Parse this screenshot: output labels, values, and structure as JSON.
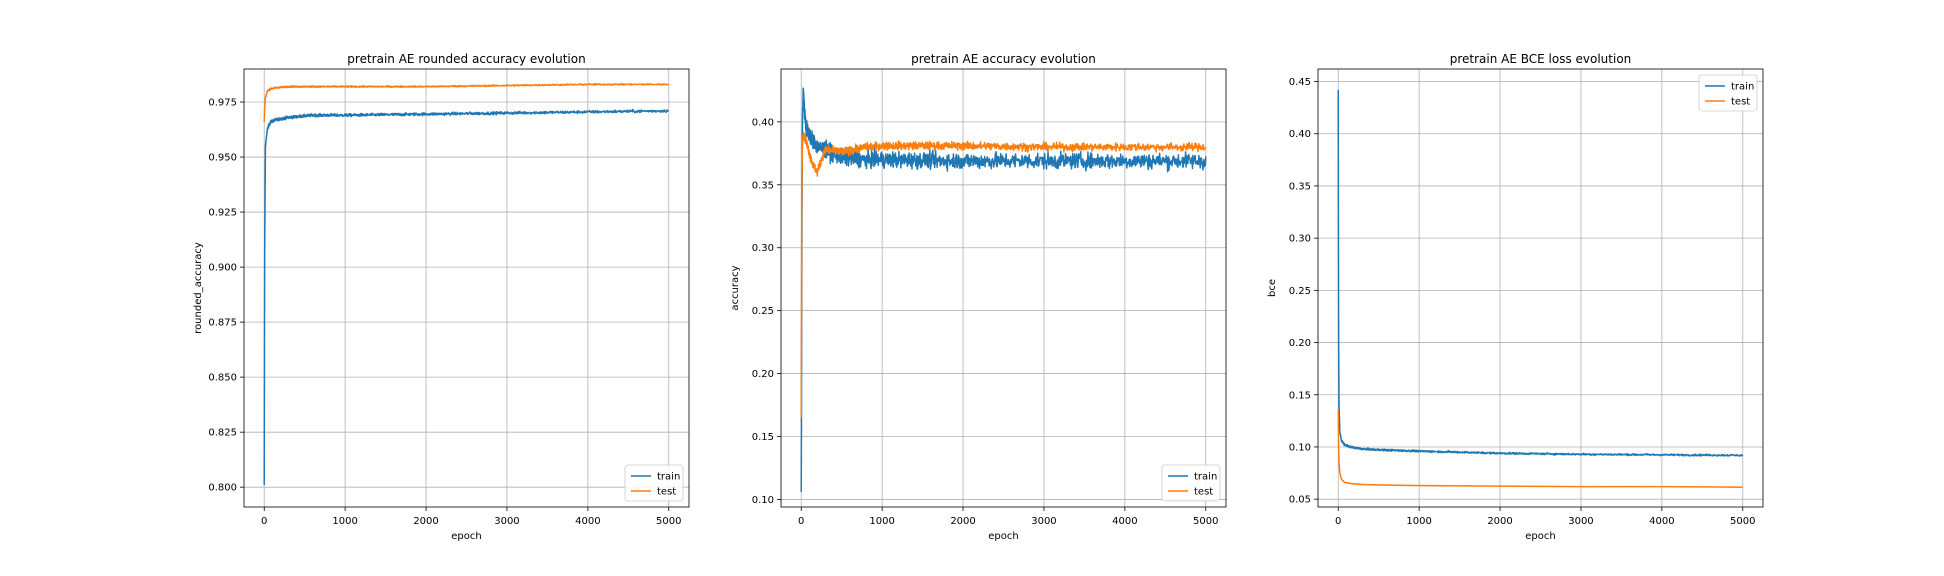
{
  "colors": {
    "train": "#1f77b4",
    "test": "#ff7f0e",
    "grid": "#b0b0b0"
  },
  "chart_data": [
    {
      "type": "line",
      "title": "pretrain AE rounded accuracy evolution",
      "xlabel": "epoch",
      "ylabel": "rounded_accuracy",
      "xlim": [
        -250,
        5250
      ],
      "ylim": [
        0.791,
        0.99
      ],
      "xticks": [
        0,
        1000,
        2000,
        3000,
        4000,
        5000
      ],
      "yticks": [
        0.8,
        0.825,
        0.85,
        0.875,
        0.9,
        0.925,
        0.95,
        0.975
      ],
      "ytick_labels": [
        "0.800",
        "0.825",
        "0.850",
        "0.875",
        "0.900",
        "0.925",
        "0.950",
        "0.975"
      ],
      "grid": true,
      "legend": "lower right",
      "series": [
        {
          "name": "train",
          "color": "#1f77b4",
          "noise": 0.0006,
          "x": [
            0,
            5,
            15,
            40,
            80,
            150,
            300,
            600,
            1000,
            2000,
            3000,
            4000,
            5000
          ],
          "y": [
            0.801,
            0.905,
            0.955,
            0.963,
            0.966,
            0.967,
            0.968,
            0.969,
            0.969,
            0.9695,
            0.97,
            0.9705,
            0.971
          ]
        },
        {
          "name": "test",
          "color": "#ff7f0e",
          "noise": 0.0003,
          "x": [
            0,
            5,
            15,
            40,
            80,
            150,
            300,
            1000,
            2000,
            3000,
            4000,
            5000
          ],
          "y": [
            0.966,
            0.972,
            0.977,
            0.98,
            0.981,
            0.9815,
            0.982,
            0.982,
            0.982,
            0.9825,
            0.983,
            0.983
          ]
        }
      ]
    },
    {
      "type": "line",
      "title": "pretrain AE accuracy evolution",
      "xlabel": "epoch",
      "ylabel": "accuracy",
      "xlim": [
        -250,
        5250
      ],
      "ylim": [
        0.094,
        0.442
      ],
      "xticks": [
        0,
        1000,
        2000,
        3000,
        4000,
        5000
      ],
      "yticks": [
        0.1,
        0.15,
        0.2,
        0.25,
        0.3,
        0.35,
        0.4
      ],
      "ytick_labels": [
        "0.10",
        "0.15",
        "0.20",
        "0.25",
        "0.30",
        "0.35",
        "0.40"
      ],
      "grid": true,
      "legend": "lower right",
      "series": [
        {
          "name": "train",
          "color": "#1f77b4",
          "noise": 0.006,
          "x": [
            0,
            3,
            8,
            15,
            25,
            40,
            60,
            100,
            150,
            200,
            300,
            400,
            500,
            800,
            1000,
            2000,
            3000,
            4000,
            5000
          ],
          "y": [
            0.106,
            0.165,
            0.3,
            0.4,
            0.425,
            0.41,
            0.395,
            0.39,
            0.385,
            0.38,
            0.378,
            0.375,
            0.372,
            0.37,
            0.37,
            0.369,
            0.369,
            0.369,
            0.369
          ]
        },
        {
          "name": "test",
          "color": "#ff7f0e",
          "noise": 0.003,
          "x": [
            0,
            3,
            8,
            15,
            30,
            60,
            100,
            150,
            200,
            250,
            300,
            500,
            800,
            1000,
            1500,
            2000,
            3000,
            4000,
            5000
          ],
          "y": [
            0.165,
            0.26,
            0.35,
            0.385,
            0.39,
            0.385,
            0.375,
            0.365,
            0.36,
            0.37,
            0.378,
            0.376,
            0.38,
            0.381,
            0.381,
            0.381,
            0.38,
            0.38,
            0.38
          ]
        }
      ]
    },
    {
      "type": "line",
      "title": "pretrain AE BCE loss evolution",
      "xlabel": "epoch",
      "ylabel": "bce",
      "xlim": [
        -250,
        5250
      ],
      "ylim": [
        0.0425,
        0.462
      ],
      "xticks": [
        0,
        1000,
        2000,
        3000,
        4000,
        5000
      ],
      "yticks": [
        0.05,
        0.1,
        0.15,
        0.2,
        0.25,
        0.3,
        0.35,
        0.4,
        0.45
      ],
      "ytick_labels": [
        "0.05",
        "0.10",
        "0.15",
        "0.20",
        "0.25",
        "0.30",
        "0.35",
        "0.40",
        "0.45"
      ],
      "grid": true,
      "legend": "upper right",
      "series": [
        {
          "name": "train",
          "color": "#1f77b4",
          "noise": 0.0008,
          "x": [
            0,
            2,
            5,
            10,
            20,
            40,
            80,
            150,
            300,
            600,
            1000,
            2000,
            3000,
            4000,
            5000
          ],
          "y": [
            0.442,
            0.33,
            0.2,
            0.14,
            0.115,
            0.106,
            0.102,
            0.1,
            0.098,
            0.097,
            0.096,
            0.094,
            0.093,
            0.0925,
            0.092
          ]
        },
        {
          "name": "test",
          "color": "#ff7f0e",
          "noise": 0.0001,
          "x": [
            0,
            5,
            10,
            20,
            40,
            80,
            150,
            300,
            600,
            1000,
            2000,
            3000,
            4000,
            5000
          ],
          "y": [
            0.135,
            0.1,
            0.085,
            0.075,
            0.069,
            0.066,
            0.065,
            0.064,
            0.0635,
            0.063,
            0.0625,
            0.062,
            0.062,
            0.0615
          ]
        }
      ]
    }
  ]
}
